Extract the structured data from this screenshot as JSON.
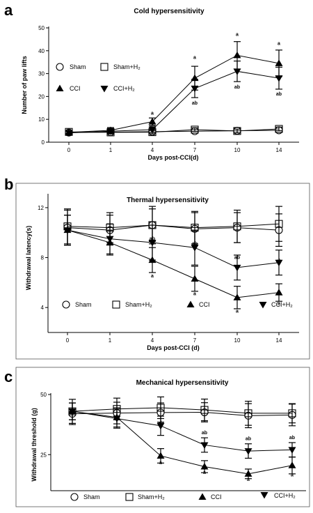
{
  "panels": [
    {
      "letter": "a"
    },
    {
      "letter": "b"
    },
    {
      "letter": "c"
    }
  ],
  "chart_data": [
    {
      "type": "line",
      "title": "Cold hypersensitivity",
      "xlabel": "Days post-CCI(d)",
      "ylabel": "Number of paw lifts",
      "categories": [
        "0",
        "1",
        "4",
        "7",
        "10",
        "14"
      ],
      "yticks": [
        "0",
        "10",
        "20",
        "30",
        "40",
        "50"
      ],
      "ylim": [
        0,
        50
      ],
      "legend_placement": "top-left",
      "legend_labels": [
        "Sham",
        "Sham+H₂",
        "CCI",
        "CCI+H₂"
      ],
      "series": [
        {
          "name": "Sham",
          "marker": "circle",
          "values": [
            4.2,
            4.4,
            4.6,
            4.8,
            5.0,
            5.2
          ],
          "errors": [
            0.6,
            0.6,
            0.7,
            0.8,
            0.8,
            0.8
          ]
        },
        {
          "name": "Sham+H₂",
          "marker": "square",
          "values": [
            4.5,
            4.3,
            4.4,
            5.5,
            4.9,
            5.8
          ],
          "errors": [
            0.6,
            0.6,
            0.7,
            0.8,
            0.8,
            0.8
          ]
        },
        {
          "name": "CCI",
          "marker": "triangle-up",
          "values": [
            4.3,
            5.2,
            9.0,
            28.0,
            38.0,
            34.5
          ],
          "errors": [
            0.8,
            1.2,
            1.6,
            5.2,
            6.0,
            5.8
          ]
        },
        {
          "name": "CCI+H₂",
          "marker": "triangle-down",
          "values": [
            4.1,
            4.8,
            5.5,
            23.5,
            31.0,
            28.0
          ],
          "errors": [
            0.8,
            1.2,
            1.2,
            4.0,
            4.5,
            4.8
          ]
        }
      ],
      "annotations": [
        {
          "text": "a",
          "category": "4",
          "value": 12
        },
        {
          "text": "ab",
          "category": "4",
          "value": 6.2
        },
        {
          "text": "a",
          "category": "7",
          "value": 36.5
        },
        {
          "text": "ab",
          "category": "7",
          "value": 16.5
        },
        {
          "text": "a",
          "category": "10",
          "value": 46.5
        },
        {
          "text": "ab",
          "category": "10",
          "value": 23.5
        },
        {
          "text": "a",
          "category": "14",
          "value": 42.5
        },
        {
          "text": "ab",
          "category": "14",
          "value": 20.5
        }
      ]
    },
    {
      "type": "line",
      "title": "Thermal hypersensitivity",
      "xlabel": "Days post-CCI (d)",
      "ylabel": "Withdrawal latency(s)",
      "categories": [
        "0",
        "1",
        "4",
        "7",
        "10",
        "14"
      ],
      "yticks": [
        "4",
        "8",
        "12"
      ],
      "ylim": [
        2,
        13
      ],
      "legend_placement": "bottom",
      "legend_labels": [
        "Sham",
        "Sham+H₂",
        "CCI",
        "CCI+H₂"
      ],
      "series": [
        {
          "name": "Sham",
          "marker": "circle",
          "values": [
            10.4,
            10.2,
            10.6,
            10.3,
            10.4,
            10.2
          ],
          "errors": [
            1.4,
            1.2,
            1.3,
            1.3,
            1.2,
            1.3
          ]
        },
        {
          "name": "Sham+H₂",
          "marker": "square",
          "values": [
            10.5,
            10.4,
            10.6,
            10.4,
            10.5,
            10.7
          ],
          "errors": [
            1.4,
            1.2,
            1.5,
            1.3,
            1.3,
            1.4
          ]
        },
        {
          "name": "CCI",
          "marker": "triangle-up",
          "values": [
            10.2,
            9.2,
            7.8,
            6.3,
            4.8,
            5.2
          ],
          "errors": [
            1.2,
            1.0,
            1.0,
            1.0,
            0.9,
            0.7
          ]
        },
        {
          "name": "CCI+H₂",
          "marker": "triangle-down",
          "values": [
            10.2,
            9.5,
            9.2,
            8.8,
            7.2,
            7.6
          ],
          "errors": [
            1.2,
            1.2,
            1.4,
            1.4,
            1.0,
            1.0
          ]
        }
      ],
      "annotations": [
        {
          "text": "ab",
          "category": "4",
          "value": 9.4
        },
        {
          "text": "a",
          "category": "4",
          "value": 6.4
        },
        {
          "text": "ab",
          "category": "7",
          "value": 9.0
        },
        {
          "text": "a",
          "category": "7",
          "value": 5.0
        },
        {
          "text": "ab",
          "category": "10",
          "value": 7.9
        },
        {
          "text": "a",
          "category": "10",
          "value": 3.6
        },
        {
          "text": "ab",
          "category": "14",
          "value": 7.6
        },
        {
          "text": "a",
          "category": "14",
          "value": 4.2
        }
      ]
    },
    {
      "type": "line",
      "title": "Mechanical hypersensitivity",
      "xlabel": "",
      "ylabel": "Withdrawal threshold (g)",
      "categories": [
        "0",
        "1",
        "4",
        "7",
        "10",
        "14"
      ],
      "yticks": [
        "25",
        "50"
      ],
      "ylim": [
        10,
        50
      ],
      "legend_placement": "bottom",
      "legend_labels": [
        "Sham",
        "Sham+H₂",
        "CCI",
        "CCI+H₂"
      ],
      "series": [
        {
          "name": "Sham",
          "marker": "circle",
          "values": [
            42.0,
            42.3,
            42.5,
            42.6,
            41.2,
            41.5
          ],
          "errors": [
            4.5,
            4.5,
            4.0,
            4.0,
            5.0,
            4.5
          ]
        },
        {
          "name": "Sham+H₂",
          "marker": "square",
          "values": [
            43.0,
            44.0,
            44.5,
            43.6,
            42.2,
            42.2
          ],
          "errors": [
            5.0,
            4.5,
            4.5,
            4.5,
            5.0,
            4.0
          ]
        },
        {
          "name": "CCI",
          "marker": "triangle-up",
          "values": [
            43.0,
            40.5,
            24.5,
            20.0,
            17.0,
            20.5
          ],
          "errors": [
            3.5,
            4.0,
            3.0,
            2.5,
            2.0,
            3.5
          ]
        },
        {
          "name": "CCI+H₂",
          "marker": "triangle-down",
          "values": [
            43.0,
            40.0,
            37.0,
            29.0,
            26.5,
            27.0
          ],
          "errors": [
            3.5,
            4.0,
            4.0,
            3.0,
            3.0,
            3.0
          ]
        }
      ],
      "annotations": [
        {
          "text": "ab",
          "category": "4",
          "value": 37.5
        },
        {
          "text": "a",
          "category": "4",
          "value": 21.0
        },
        {
          "text": "ab",
          "category": "7",
          "value": 33.5
        },
        {
          "text": "a",
          "category": "7",
          "value": 17.0
        },
        {
          "text": "ab",
          "category": "10",
          "value": 31.0
        },
        {
          "text": "a",
          "category": "10",
          "value": 14.0
        },
        {
          "text": "ab",
          "category": "14",
          "value": 31.5
        },
        {
          "text": "a",
          "category": "14",
          "value": 16.0
        }
      ]
    }
  ]
}
